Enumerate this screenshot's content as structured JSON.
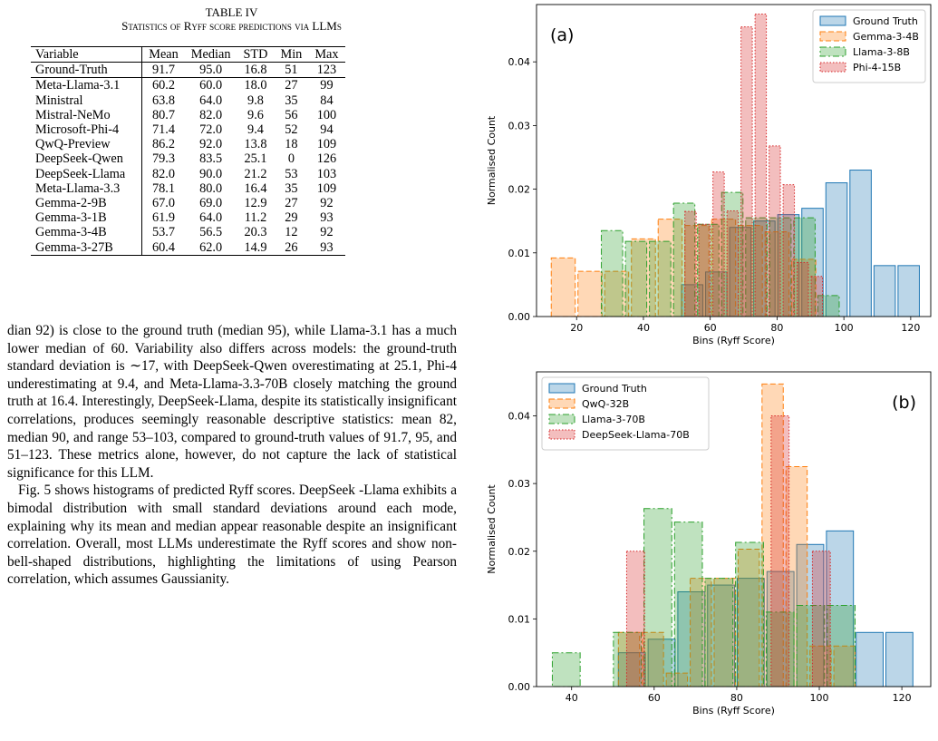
{
  "table": {
    "title": "TABLE IV",
    "subtitle": "Statistics of Ryff score predictions via LLMs",
    "headers": [
      "Variable",
      "Mean",
      "Median",
      "STD",
      "Min",
      "Max"
    ],
    "rows": [
      [
        "Ground-Truth",
        "91.7",
        "95.0",
        "16.8",
        "51",
        "123"
      ],
      [
        "Meta-Llama-3.1",
        "60.2",
        "60.0",
        "18.0",
        "27",
        "99"
      ],
      [
        "Ministral",
        "63.8",
        "64.0",
        "9.8",
        "35",
        "84"
      ],
      [
        "Mistral-NeMo",
        "80.7",
        "82.0",
        "9.6",
        "56",
        "100"
      ],
      [
        "Microsoft-Phi-4",
        "71.4",
        "72.0",
        "9.4",
        "52",
        "94"
      ],
      [
        "QwQ-Preview",
        "86.2",
        "92.0",
        "13.8",
        "18",
        "109"
      ],
      [
        "DeepSeek-Qwen",
        "79.3",
        "83.5",
        "25.1",
        "0",
        "126"
      ],
      [
        "DeepSeek-Llama",
        "82.0",
        "90.0",
        "21.2",
        "53",
        "103"
      ],
      [
        "Meta-Llama-3.3",
        "78.1",
        "80.0",
        "16.4",
        "35",
        "109"
      ],
      [
        "Gemma-2-9B",
        "67.0",
        "69.0",
        "12.9",
        "27",
        "92"
      ],
      [
        "Gemma-3-1B",
        "61.9",
        "64.0",
        "11.2",
        "29",
        "93"
      ],
      [
        "Gemma-3-4B",
        "53.7",
        "56.5",
        "20.3",
        "12",
        "92"
      ],
      [
        "Gemma-3-27B",
        "60.4",
        "62.0",
        "14.9",
        "26",
        "93"
      ]
    ]
  },
  "text": {
    "p1": "dian 92) is close to the ground truth (median 95), while Llama-3.1 has a much lower median of 60. Variability also differs across models: the ground-truth standard deviation is ∼17, with DeepSeek-Qwen overestimating at 25.1, Phi-4 underestimating at 9.4, and Meta-Llama-3.3-70B closely matching the ground truth at 16.4. Interestingly, DeepSeek-Llama, despite its statistically insignificant correlations, produces seemingly reasonable descriptive statistics: mean 82, median 90, and range 53–103, compared to ground-truth values of 91.7, 95, and 51–123. These metrics alone, however, do not capture the lack of statistical significance for this LLM.",
    "p2": "Fig. 5 shows histograms of predicted Ryff scores. DeepSeek -Llama exhibits a bimodal distribution with small standard deviations around each mode, explaining why its mean and median appear reasonable despite an insignificant correlation. Overall, most LLMs underestimate the Ryff scores and show non-bell-shaped distributions, highlighting the limitations of using Pearson correlation, which assumes Gaussianity."
  },
  "chart_data": [
    {
      "type": "bar",
      "panel_label": "(a)",
      "xlabel": "Bins (Ryff Score)",
      "ylabel": "Normalised Count",
      "xlim": [
        8,
        126
      ],
      "ylim": [
        0,
        0.049
      ],
      "xticks": [
        20,
        40,
        60,
        80,
        100,
        120
      ],
      "yticks": [
        0.0,
        0.01,
        0.02,
        0.03,
        0.04
      ],
      "ytick_labels": [
        "0.00",
        "0.01",
        "0.02",
        "0.03",
        "0.04"
      ],
      "legend_position": "top-right",
      "series": [
        {
          "name": "Ground Truth",
          "color": "#1f77b4",
          "style": "solid",
          "bins": [
            [
              51,
              58.2,
              0.005
            ],
            [
              58.2,
              65.4,
              0.007
            ],
            [
              65.4,
              72.6,
              0.014
            ],
            [
              72.6,
              79.8,
              0.015
            ],
            [
              79.8,
              87,
              0.016
            ],
            [
              87,
              94.2,
              0.017
            ],
            [
              94.2,
              101.4,
              0.021
            ],
            [
              101.4,
              108.6,
              0.023
            ],
            [
              108.6,
              115.8,
              0.008
            ],
            [
              115.8,
              123,
              0.008
            ]
          ]
        },
        {
          "name": "Gemma-3-4B",
          "color": "#ff7f0e",
          "style": "dashed",
          "bins": [
            [
              12,
              20,
              0.0092
            ],
            [
              20,
              28,
              0.0071
            ],
            [
              28,
              36,
              0.0071
            ],
            [
              36,
              44,
              0.0122
            ],
            [
              44,
              52,
              0.0153
            ],
            [
              52,
              60,
              0.0143
            ],
            [
              60,
              68,
              0.0153
            ],
            [
              68,
              76,
              0.0143
            ],
            [
              76,
              84,
              0.0133
            ],
            [
              84,
              92,
              0.009
            ]
          ]
        },
        {
          "name": "Llama-3-8B",
          "color": "#2ca02c",
          "style": "dashdot",
          "bins": [
            [
              27,
              34.2,
              0.0135
            ],
            [
              34.2,
              41.4,
              0.0118
            ],
            [
              41.4,
              48.6,
              0.0118
            ],
            [
              48.6,
              55.8,
              0.0178
            ],
            [
              55.8,
              63,
              0.0145
            ],
            [
              63,
              70.2,
              0.0195
            ],
            [
              70.2,
              77.4,
              0.0155
            ],
            [
              77.4,
              84.6,
              0.0155
            ],
            [
              84.6,
              91.8,
              0.0155
            ],
            [
              91.8,
              99,
              0.0033
            ]
          ]
        },
        {
          "name": "Phi-4-15B",
          "color": "#d62728",
          "style": "dotted",
          "bins": [
            [
              52,
              56.2,
              0.0165
            ],
            [
              56.2,
              60.4,
              0.0145
            ],
            [
              60.4,
              64.6,
              0.0227
            ],
            [
              64.6,
              68.8,
              0.0166
            ],
            [
              68.8,
              73,
              0.0455
            ],
            [
              73,
              77.2,
              0.0475
            ],
            [
              77.2,
              81.4,
              0.0268
            ],
            [
              81.4,
              85.6,
              0.0207
            ],
            [
              85.6,
              89.8,
              0.0085
            ],
            [
              89.8,
              94,
              0.0063
            ]
          ]
        }
      ]
    },
    {
      "type": "bar",
      "panel_label": "(b)",
      "xlabel": "Bins (Ryff Score)",
      "ylabel": "Normalised Count",
      "xlim": [
        31.5,
        127
      ],
      "ylim": [
        0,
        0.0465
      ],
      "xticks": [
        40,
        60,
        80,
        100,
        120
      ],
      "yticks": [
        0.0,
        0.01,
        0.02,
        0.03,
        0.04
      ],
      "ytick_labels": [
        "0.00",
        "0.01",
        "0.02",
        "0.03",
        "0.04"
      ],
      "legend_position": "top-left",
      "series": [
        {
          "name": "Ground Truth",
          "color": "#1f77b4",
          "style": "solid",
          "bins": [
            [
              51,
              58.2,
              0.005
            ],
            [
              58.2,
              65.4,
              0.007
            ],
            [
              65.4,
              72.6,
              0.014
            ],
            [
              72.6,
              79.8,
              0.015
            ],
            [
              79.8,
              87,
              0.016
            ],
            [
              87,
              94.2,
              0.017
            ],
            [
              94.2,
              101.4,
              0.021
            ],
            [
              101.4,
              108.6,
              0.023
            ],
            [
              108.6,
              115.8,
              0.008
            ],
            [
              115.8,
              123,
              0.008
            ]
          ]
        },
        {
          "name": "QwQ-32B",
          "color": "#ff7f0e",
          "style": "dashed",
          "bins": [
            [
              51,
              56.8,
              0.008
            ],
            [
              56.8,
              62.6,
              0.008
            ],
            [
              62.6,
              68.4,
              0.002
            ],
            [
              68.4,
              74.2,
              0.016
            ],
            [
              74.2,
              80,
              0.016
            ],
            [
              80,
              85.8,
              0.0203
            ],
            [
              85.8,
              91.6,
              0.0447
            ],
            [
              91.6,
              97.4,
              0.0325
            ],
            [
              97.4,
              103.2,
              0.006
            ],
            [
              103.2,
              109,
              0.006
            ]
          ]
        },
        {
          "name": "Llama-3-70B",
          "color": "#2ca02c",
          "style": "dashdot",
          "bins": [
            [
              35,
              42.4,
              0.005
            ],
            [
              42.4,
              49.8,
              0.0
            ],
            [
              49.8,
              57.2,
              0.008
            ],
            [
              57.2,
              64.6,
              0.0263
            ],
            [
              64.6,
              72,
              0.0243
            ],
            [
              72,
              79.4,
              0.016
            ],
            [
              79.4,
              86.8,
              0.0213
            ],
            [
              86.8,
              94.2,
              0.011
            ],
            [
              94.2,
              101.6,
              0.012
            ],
            [
              101.6,
              109,
              0.012
            ]
          ]
        },
        {
          "name": "DeepSeek-Llama-70B",
          "color": "#d62728",
          "style": "dotted",
          "bins": [
            [
              53,
              58,
              0.02
            ],
            [
              58,
              63,
              0.0
            ],
            [
              63,
              68,
              0.0
            ],
            [
              68,
              73,
              0.0
            ],
            [
              73,
              78,
              0.0
            ],
            [
              78,
              83,
              0.0
            ],
            [
              83,
              88,
              0.0
            ],
            [
              88,
              93,
              0.04
            ],
            [
              93,
              98,
              0.0
            ],
            [
              98,
              103,
              0.02
            ]
          ]
        }
      ]
    }
  ]
}
